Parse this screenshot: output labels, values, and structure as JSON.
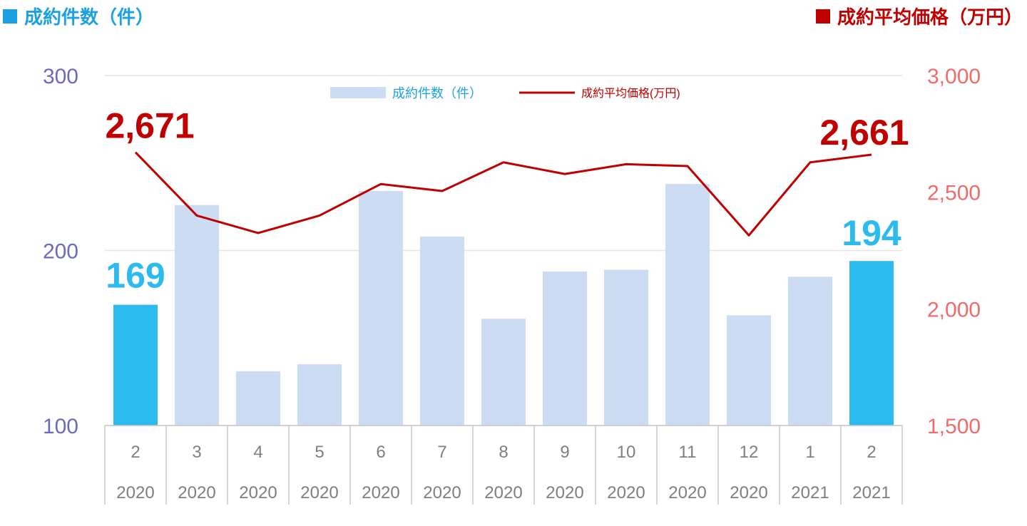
{
  "header": {
    "left": "成約件数（件）",
    "right": "成約平均価格（万円）"
  },
  "colors": {
    "bar_normal": "#CCDCF2",
    "bar_highlight": "#2BBBEF",
    "line": "#C00000",
    "left_axis_text": "#6B6BBE",
    "right_axis_text": "#F26B6B",
    "left_header": "#1BA1E2",
    "right_header": "#C00000",
    "grid": "#E3E3E3",
    "table_line": "#C8C8C8",
    "tick_text": "#7F7F7F"
  },
  "chart_data": {
    "type": "bar",
    "categories": [
      "2",
      "3",
      "4",
      "5",
      "6",
      "7",
      "8",
      "9",
      "10",
      "11",
      "12",
      "1",
      "2"
    ],
    "category_years": [
      "2020",
      "2020",
      "2020",
      "2020",
      "2020",
      "2020",
      "2020",
      "2020",
      "2020",
      "2020",
      "2020",
      "2021",
      "2021"
    ],
    "series": [
      {
        "name": "成約件数（件）",
        "type": "bar",
        "axis": "left",
        "values": [
          169,
          226,
          131,
          135,
          234,
          208,
          161,
          188,
          189,
          238,
          163,
          185,
          194
        ],
        "highlight": [
          0,
          12
        ]
      },
      {
        "name": "成約平均価格(万円)",
        "type": "line",
        "axis": "right",
        "values": [
          2671,
          2400,
          2325,
          2400,
          2535,
          2505,
          2628,
          2578,
          2620,
          2612,
          2315,
          2628,
          2661
        ]
      }
    ],
    "left_axis": {
      "ylim": [
        100,
        300
      ],
      "ticks": [
        "100",
        "200",
        "300"
      ]
    },
    "right_axis": {
      "ylim": [
        1500,
        3000
      ],
      "ticks": [
        "1,500",
        "2,000",
        "2,500",
        "3,000"
      ]
    },
    "data_labels": {
      "bar_first": "169",
      "bar_last": "194",
      "line_first": "2,671",
      "line_last": "2,661"
    },
    "legend": {
      "position": "top-center",
      "bar_label": "成約件数（件）",
      "line_label": "成約平均価格(万円)"
    },
    "grid": true
  }
}
